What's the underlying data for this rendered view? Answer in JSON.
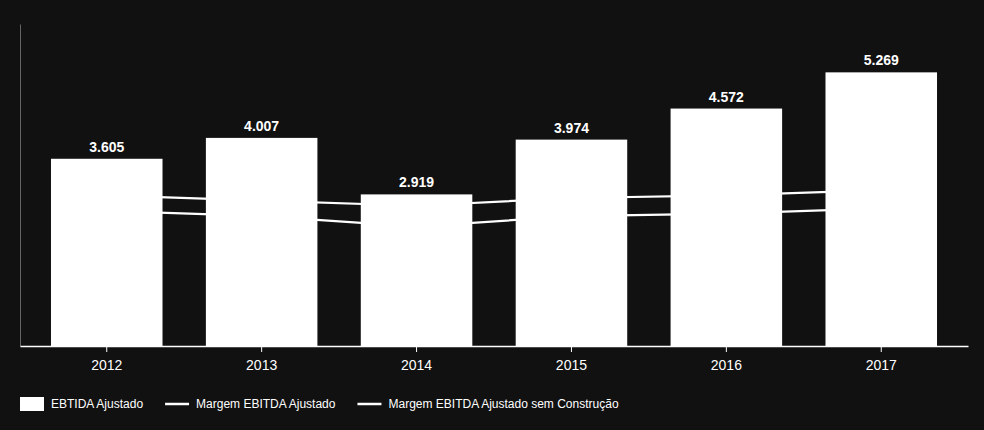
{
  "chart_data": {
    "type": "bar",
    "categories": [
      "2012",
      "2013",
      "2014",
      "2015",
      "2016",
      "2017"
    ],
    "series": [
      {
        "name": "EBTIDA Ajustado",
        "type": "bar",
        "color": "#ffffff",
        "values": [
          3605,
          4007,
          2919,
          3974,
          4572,
          5269
        ],
        "value_labels": [
          "3.605",
          "4.007",
          "2.919",
          "3.974",
          "4.572",
          "5.269"
        ]
      },
      {
        "name": "Margem EBITDA Ajustado",
        "type": "line",
        "color": "#ffffff",
        "values": [
          2600,
          2500,
          2300,
          2500,
          2550,
          2650
        ]
      },
      {
        "name": "Margem EBITDA Ajustado sem Construção",
        "type": "line",
        "color": "#ffffff",
        "values": [
          2900,
          2800,
          2700,
          2850,
          2900,
          3000
        ]
      }
    ],
    "ylim": [
      0,
      6200
    ],
    "data_labels": true,
    "tick_labels": "x",
    "grid": false,
    "legend": "bottom"
  }
}
